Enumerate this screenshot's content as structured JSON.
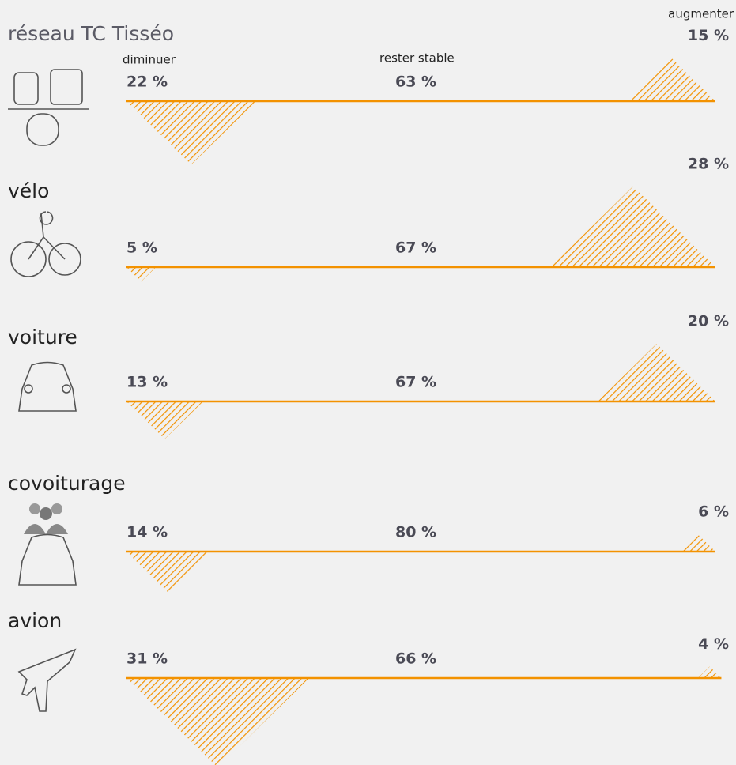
{
  "chart_data": {
    "type": "triangle",
    "categories": [
      "réseau TC Tisséo",
      "vélo",
      "voiture",
      "covoiturage",
      "avion"
    ],
    "series": [
      {
        "name": "diminuer",
        "color": "#f39200",
        "values": [
          22,
          5,
          13,
          14,
          31
        ],
        "value_labels": [
          "22 %",
          "5 %",
          "13 %",
          "14 %",
          "31 %"
        ]
      },
      {
        "name": "rester stable",
        "color": "#f39200",
        "values": [
          63,
          67,
          67,
          80,
          66
        ],
        "value_labels": [
          "63 %",
          "67 %",
          "67 %",
          "80 %",
          "66 %"
        ]
      },
      {
        "name": "augmenter",
        "color": "#f39200",
        "values": [
          15,
          28,
          20,
          6,
          4
        ],
        "value_labels": [
          "15 %",
          "28 %",
          "20 %",
          "6 %",
          "4 %"
        ]
      }
    ]
  }
}
